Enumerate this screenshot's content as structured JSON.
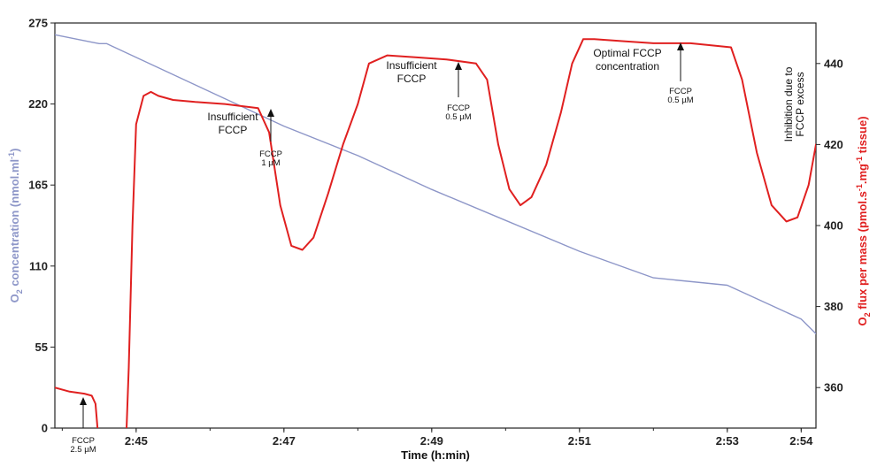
{
  "chart_data": {
    "type": "line",
    "xlabel": "Time (h:min)",
    "x_ticks": [
      "2:45",
      "2:47",
      "2:49",
      "2:51",
      "2:53",
      "2:54"
    ],
    "xlim": [
      "2:43.9",
      "2:54.2"
    ],
    "y_left": {
      "label_main": "O",
      "label_sub": "2",
      "label_rest": " concentration  (nmol.ml",
      "label_sup": "-1",
      "label_end": ")",
      "color": "#8d96c8",
      "ticks": [
        "0",
        "55",
        "110",
        "165",
        "220",
        "275"
      ],
      "ylim": [
        0,
        275
      ]
    },
    "y_right": {
      "label_main": "O",
      "label_sub": "2",
      "label_rest1": " flux per mass  (pmol.s",
      "label_sup1": "-1",
      "label_rest2": ".mg",
      "label_sup2": "-1",
      "label_end": " tissue)",
      "color": "#e02020",
      "ticks": [
        "360",
        "380",
        "400",
        "420",
        "440"
      ],
      "ylim": [
        350,
        450
      ]
    },
    "series": [
      {
        "axis": "left",
        "color": "#8d96c8",
        "x": [
          "2:43.9",
          "2:44.4",
          "2:44.5",
          "2:44.6",
          "2:47",
          "2:48",
          "2:49",
          "2:50",
          "2:51",
          "2:52",
          "2:53",
          "2:54",
          "2:54.2"
        ],
        "y": [
          267,
          262,
          261,
          261,
          205,
          185,
          162,
          141,
          120,
          102,
          97,
          74,
          64
        ]
      },
      {
        "axis": "right",
        "color": "#e02020",
        "x": [
          "2:43.9",
          "2:44.1",
          "2:44.3",
          "2:44.4",
          "2:44.45",
          "2:44.5",
          "2:44.86",
          "2:44.9",
          "2:44.95",
          "2:45.0",
          "2:45.1",
          "2:45.2",
          "2:45.3",
          "2:45.5",
          "2:45.8",
          "2:46.2",
          "2:46.65",
          "2:46.8",
          "2:46.95",
          "2:47.1",
          "2:47.25",
          "2:47.4",
          "2:47.6",
          "2:47.8",
          "2:48.0",
          "2:48.15",
          "2:48.4",
          "2:48.8",
          "2:49.2",
          "2:49.6",
          "2:49.75",
          "2:49.9",
          "2:50.05",
          "2:50.2",
          "2:50.35",
          "2:50.55",
          "2:50.75",
          "2:50.9",
          "2:51.05",
          "2:51.2",
          "2:51.6",
          "2:52.0",
          "2:52.5",
          "2:53.05",
          "2:53.2",
          "2:53.4",
          "2:53.6",
          "2:53.8",
          "2:53.95",
          "2:54.1",
          "2:54.2"
        ],
        "y": [
          360,
          359,
          358.5,
          358,
          356,
          345,
          345,
          365,
          400,
          425,
          432,
          433,
          432,
          431,
          430.5,
          430,
          429,
          423,
          405,
          395,
          394,
          397,
          408,
          420,
          430,
          440,
          442,
          441.5,
          441,
          440,
          436,
          420,
          409,
          405,
          407,
          415,
          428,
          440,
          446,
          446,
          445.5,
          445,
          445,
          444,
          436,
          418,
          405,
          401,
          402,
          410,
          420
        ]
      }
    ],
    "annotations": [
      {
        "id": "a0",
        "small": [
          "FCCP",
          "2.5 µM"
        ]
      },
      {
        "id": "a1",
        "big": [
          "Insufficient",
          "FCCP"
        ],
        "small": [
          "FCCP",
          "1 µM"
        ]
      },
      {
        "id": "a2",
        "big": [
          "Insufficient",
          "FCCP"
        ],
        "small": [
          "FCCP",
          "0.5 µM"
        ]
      },
      {
        "id": "a3",
        "big": [
          "Optimal FCCP",
          "concentration"
        ],
        "small": [
          "FCCP",
          "0.5 µM"
        ]
      },
      {
        "id": "a4",
        "vertical": [
          "Inhibition due to",
          "FCCP excess"
        ]
      }
    ]
  }
}
